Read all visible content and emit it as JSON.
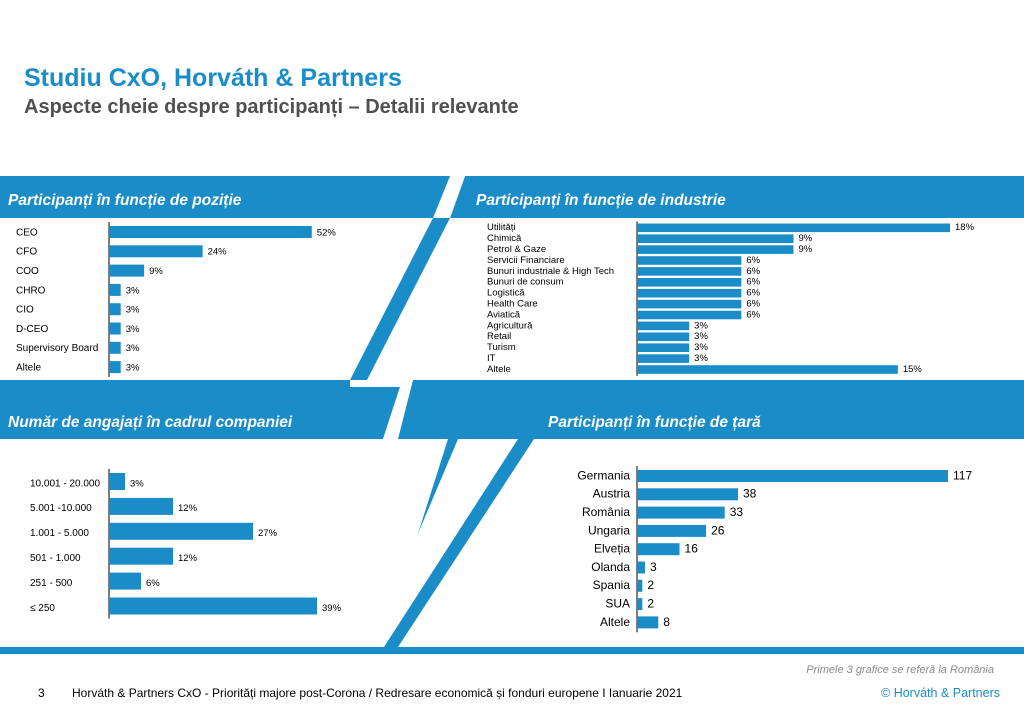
{
  "header": {
    "title": "Studiu CxO, Horváth & Partners",
    "subtitle": "Aspecte cheie despre participanți – Detalii relevante"
  },
  "colors": {
    "accent": "#1a8dc8",
    "subtitle": "#505050"
  },
  "chart_data": [
    {
      "type": "bar",
      "title": "Participanți în funcție de poziție",
      "orientation": "horizontal",
      "categories": [
        "CEO",
        "CFO",
        "COO",
        "CHRO",
        "CIO",
        "D-CEO",
        "Supervisory Board",
        "Altele"
      ],
      "values": [
        52,
        24,
        9,
        3,
        3,
        3,
        3,
        3
      ],
      "value_labels": [
        "52%",
        "24%",
        "9%",
        "3%",
        "3%",
        "3%",
        "3%",
        "3%"
      ],
      "xlim": [
        0,
        60
      ]
    },
    {
      "type": "bar",
      "title": "Participanți în funcție de industrie",
      "orientation": "horizontal",
      "categories": [
        "Utilități",
        "Chimică",
        "Petrol & Gaze",
        "Servicii Financiare",
        "Bunuri industriale & High Tech",
        "Bunuri de consum",
        "Logistică",
        "Health Care",
        "Aviatică",
        "Agricultură",
        "Retail",
        "Turism",
        "IT",
        "Altele"
      ],
      "values": [
        18,
        9,
        9,
        6,
        6,
        6,
        6,
        6,
        6,
        3,
        3,
        3,
        3,
        15
      ],
      "value_labels": [
        "18%",
        "9%",
        "9%",
        "6%",
        "6%",
        "6%",
        "6%",
        "6%",
        "6%",
        "3%",
        "3%",
        "3%",
        "3%",
        "15%"
      ],
      "xlim": [
        0,
        18
      ]
    },
    {
      "type": "bar",
      "title": "Număr de angajați în cadrul companiei",
      "orientation": "horizontal",
      "categories": [
        "10.001 - 20.000",
        "5.001 -10.000",
        "1.001 - 5.000",
        "501 - 1.000",
        "251 - 500",
        "≤ 250"
      ],
      "values": [
        3,
        12,
        27,
        12,
        6,
        39
      ],
      "value_labels": [
        "3%",
        "12%",
        "27%",
        "12%",
        "6%",
        "39%"
      ],
      "xlim": [
        0,
        39
      ]
    },
    {
      "type": "bar",
      "title": "Participanți în funcție de țară",
      "orientation": "horizontal",
      "categories": [
        "Germania",
        "Austria",
        "România",
        "Ungaria",
        "Elveția",
        "Olanda",
        "Spania",
        "SUA",
        "Altele"
      ],
      "values": [
        117,
        38,
        33,
        26,
        16,
        3,
        2,
        2,
        8
      ],
      "value_labels": [
        "117",
        "38",
        "33",
        "26",
        "16",
        "3",
        "2",
        "2",
        "8"
      ],
      "xlim": [
        0,
        117
      ]
    }
  ],
  "footer": {
    "note": "Primele 3 grafice se referă la România",
    "page_number": "3",
    "text": "Horváth & Partners CxO - Priorități majore post-Corona / Redresare economică și fonduri europene  I Ianuarie 2021",
    "copyright": "© Horváth & Partners"
  }
}
